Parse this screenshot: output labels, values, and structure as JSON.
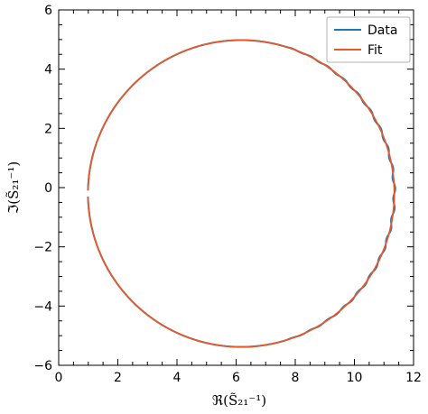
{
  "chart_data": {
    "type": "line",
    "title": "",
    "xlabel": "ℜ(S̃₂₁⁻¹)",
    "ylabel": "ℑ(S̃₂₁⁻¹)",
    "xlim": [
      0,
      12
    ],
    "ylim": [
      -6,
      6
    ],
    "x_ticks": [
      "0",
      "2",
      "4",
      "6",
      "8",
      "10",
      "12"
    ],
    "y_ticks": [
      "−6",
      "−4",
      "−2",
      "0",
      "2",
      "4",
      "6"
    ],
    "grid": false,
    "legend_position": "top-right",
    "circle_center": [
      6.17,
      -0.2
    ],
    "circle_radius": 5.18,
    "gap_at_angle_deg": 180,
    "series": [
      {
        "name": "Data",
        "color": "#1f77b4",
        "points": [
          [
            1.0,
            0.2
          ],
          [
            1.12,
            1.26
          ],
          [
            1.48,
            2.28
          ],
          [
            2.08,
            3.22
          ],
          [
            2.87,
            3.98
          ],
          [
            3.83,
            4.55
          ],
          [
            4.84,
            4.9
          ],
          [
            6.17,
            4.98
          ],
          [
            7.51,
            4.8
          ],
          [
            8.76,
            4.28
          ],
          [
            9.83,
            3.46
          ],
          [
            10.66,
            2.39
          ],
          [
            11.17,
            1.14
          ],
          [
            11.35,
            -0.2
          ],
          [
            11.17,
            -1.54
          ],
          [
            10.66,
            -2.79
          ],
          [
            9.83,
            -3.86
          ],
          [
            8.76,
            -4.68
          ],
          [
            7.51,
            -5.2
          ],
          [
            6.17,
            -5.38
          ],
          [
            4.83,
            -5.2
          ],
          [
            3.58,
            -4.68
          ],
          [
            2.51,
            -3.86
          ],
          [
            1.68,
            -2.79
          ],
          [
            1.17,
            -1.54
          ],
          [
            1.0,
            -0.3
          ]
        ]
      },
      {
        "name": "Fit",
        "color": "#e8592a"
      }
    ]
  }
}
